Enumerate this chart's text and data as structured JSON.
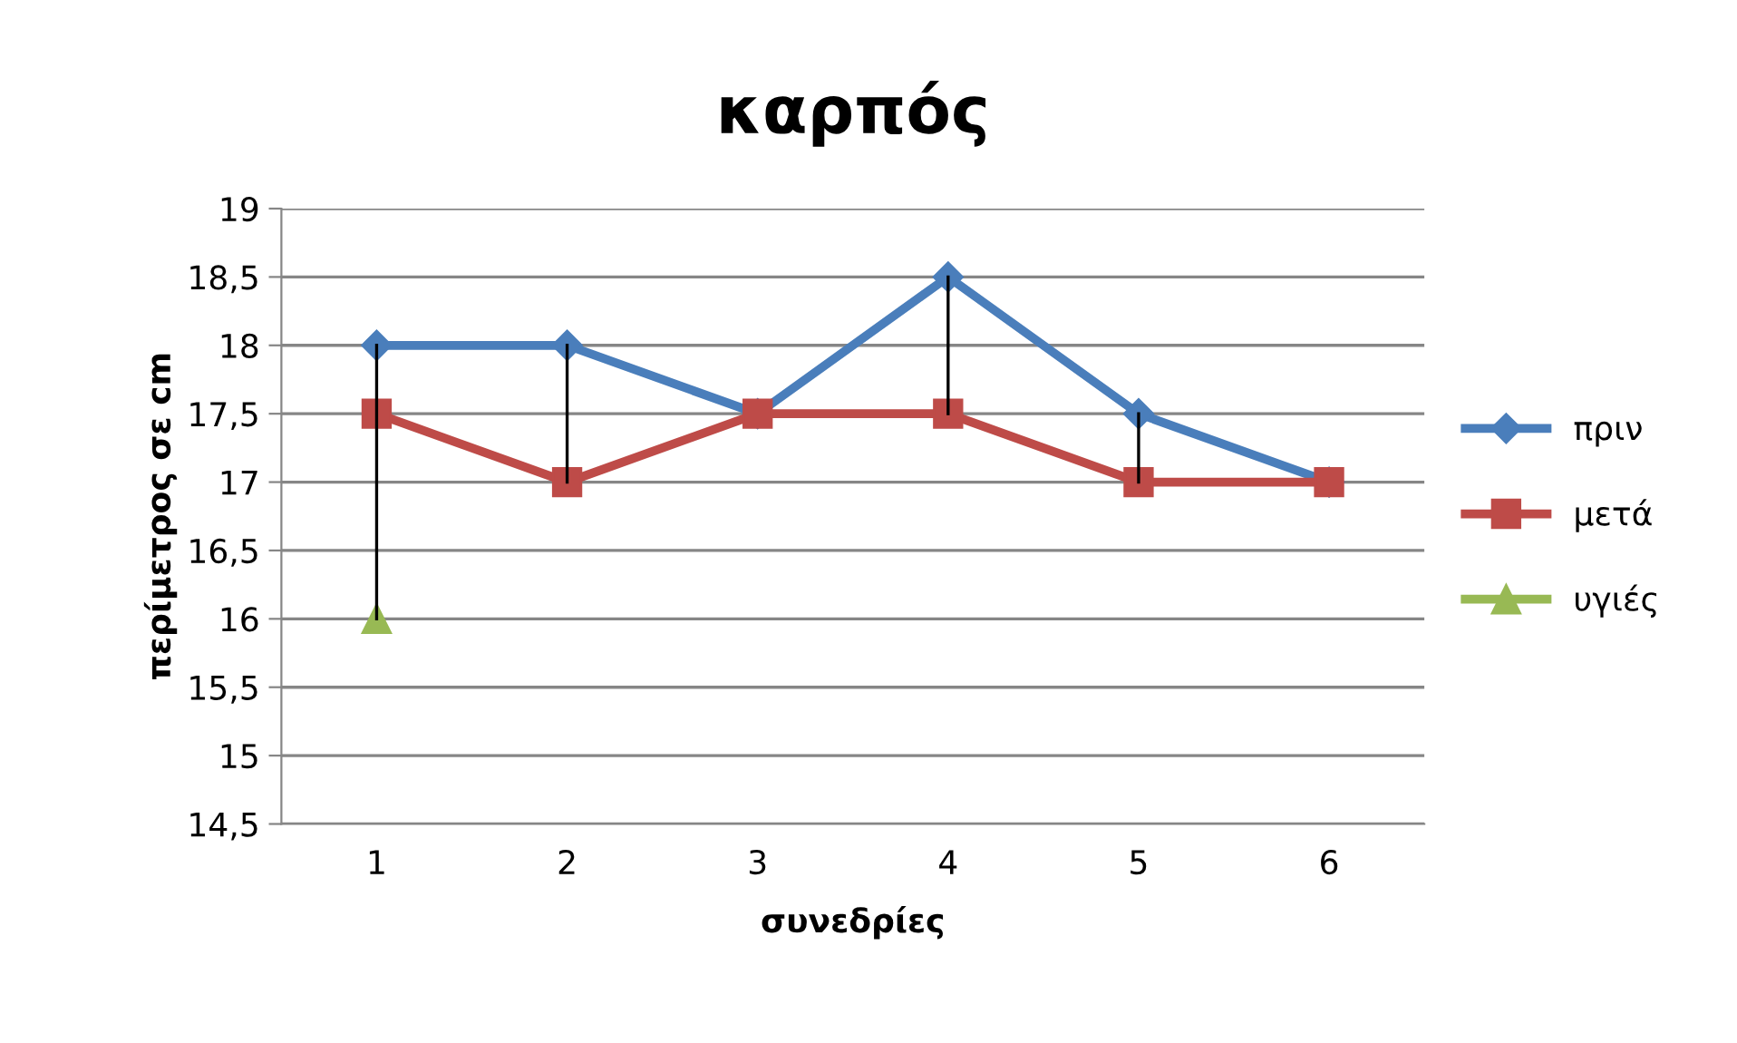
{
  "chart_data": {
    "type": "line",
    "title": "καρπός",
    "xlabel": "συνεδρίες",
    "ylabel": "περίμετρος σε cm",
    "categories": [
      "1",
      "2",
      "3",
      "4",
      "5",
      "6"
    ],
    "series": [
      {
        "name": "πριν",
        "color": "#4a7ebb",
        "marker": "diamond",
        "values": [
          18,
          18,
          17.5,
          18.5,
          17.5,
          17
        ],
        "errors": [
          [
            16,
            18
          ],
          [
            17,
            18
          ],
          null,
          [
            17.5,
            18.5
          ],
          [
            17,
            17.5
          ],
          null
        ]
      },
      {
        "name": "μετά",
        "color": "#be4b48",
        "marker": "square",
        "values": [
          17.5,
          17,
          17.5,
          17.5,
          17,
          17
        ]
      },
      {
        "name": "υγιές",
        "color": "#98b954",
        "marker": "triangle",
        "values": [
          16,
          null,
          null,
          null,
          null,
          null
        ]
      }
    ],
    "ylim": [
      14.5,
      19
    ],
    "yticks": [
      {
        "value": 14.5,
        "label": "14,5"
      },
      15,
      {
        "value": 15.5,
        "label": "15,5"
      },
      16,
      {
        "value": 16.5,
        "label": "16,5"
      },
      17,
      {
        "value": 17.5,
        "label": "17,5"
      },
      18,
      {
        "value": 18.5,
        "label": "18,5"
      },
      19
    ],
    "grid": "y",
    "legend": "right",
    "line_style": "solid"
  }
}
